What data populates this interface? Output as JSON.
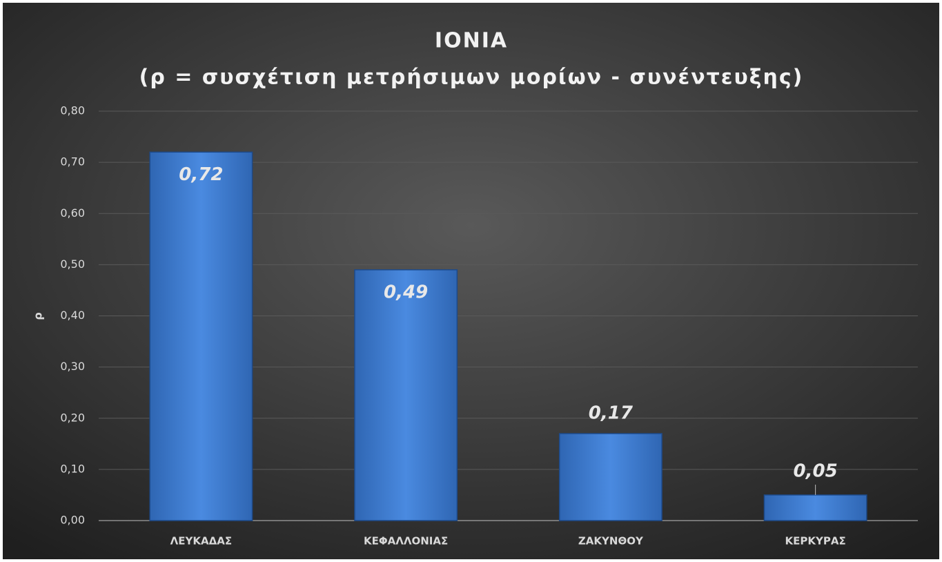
{
  "chart_data": {
    "type": "bar",
    "title": "IONIA",
    "subtitle": "(ρ = συσχέτιση μετρήσιμων μορίων - συνέντευξης)",
    "y_label": "ρ",
    "categories": [
      "ΛΕΥΚΑΔΑΣ",
      "ΚΕΦΑΛΛΟΝΙΑΣ",
      "ΖΑΚΥΝΘΟΥ",
      "ΚΕΡΚΥΡΑΣ"
    ],
    "values": [
      0.72,
      0.49,
      0.17,
      0.05
    ],
    "value_labels": [
      "0,72",
      "0,49",
      "0,17",
      "0,05"
    ],
    "color": "#3f7fd4",
    "ylim": [
      0,
      0.8
    ],
    "yticks": [
      {
        "value": 0,
        "label": "0,00"
      },
      {
        "value": 0.1,
        "label": "0,10"
      },
      {
        "value": 0.2,
        "label": "0,20"
      },
      {
        "value": 0.3,
        "label": "0,30"
      },
      {
        "value": 0.4,
        "label": "0,40"
      },
      {
        "value": 0.5,
        "label": "0,50"
      },
      {
        "value": 0.6,
        "label": "0,60"
      },
      {
        "value": 0.7,
        "label": "0,70"
      },
      {
        "value": 0.8,
        "label": "0,80"
      }
    ],
    "grid": true
  }
}
